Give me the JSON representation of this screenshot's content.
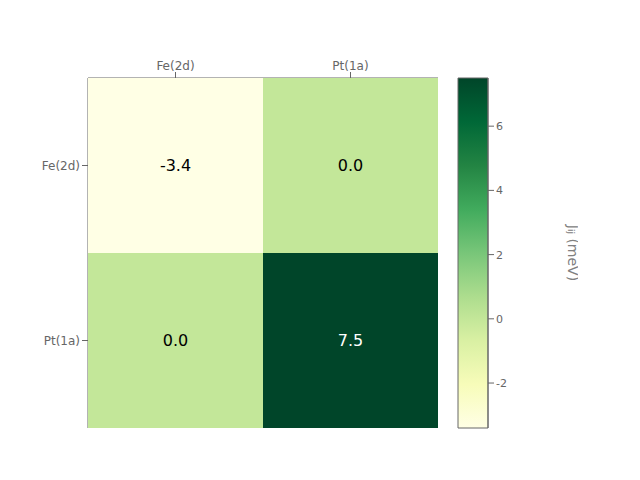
{
  "chart_data": {
    "type": "heatmap",
    "x_categories": [
      "Fe(2d)",
      "Pt(1a)"
    ],
    "y_categories": [
      "Fe(2d)",
      "Pt(1a)"
    ],
    "values": [
      [
        -3.4,
        0.0
      ],
      [
        0.0,
        7.5
      ]
    ],
    "value_labels": [
      [
        "-3.4",
        "0.0"
      ],
      [
        "0.0",
        "7.5"
      ]
    ],
    "data_labels": true,
    "colorbar_label": "Jᵢⱼ (meV)",
    "colorbar_range": [
      -3.4,
      7.5
    ],
    "colorbar_ticks": [
      -2,
      0,
      2,
      4,
      6
    ]
  }
}
